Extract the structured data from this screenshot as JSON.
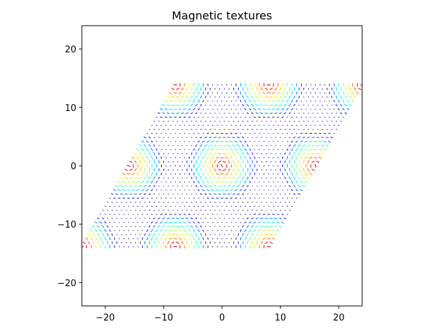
{
  "chart_data": {
    "type": "quiver",
    "title": "Magnetic textures",
    "xlabel": "",
    "ylabel": "",
    "xlim": [
      -24,
      24
    ],
    "ylim": [
      -24,
      24
    ],
    "xticks": [
      -20,
      -10,
      0,
      10,
      20
    ],
    "yticks": [
      -20,
      -10,
      0,
      10,
      20
    ],
    "grid": false,
    "colormap": "jet",
    "lattice": {
      "a1": [
        16,
        0
      ],
      "a2": [
        8,
        13.8564
      ],
      "extent_a1": [
        -1,
        1
      ],
      "extent_a2": [
        -1,
        1
      ]
    },
    "skyrmion_centers": [
      [
        0,
        0
      ],
      [
        16,
        0
      ],
      [
        -16,
        0
      ],
      [
        8,
        13.86
      ],
      [
        -8,
        13.86
      ],
      [
        24,
        13.86
      ],
      [
        -8,
        -13.86
      ],
      [
        8,
        -13.86
      ],
      [
        -24,
        -13.86
      ]
    ],
    "colors": {
      "axes": "#000000",
      "background": "#ffffff"
    }
  }
}
